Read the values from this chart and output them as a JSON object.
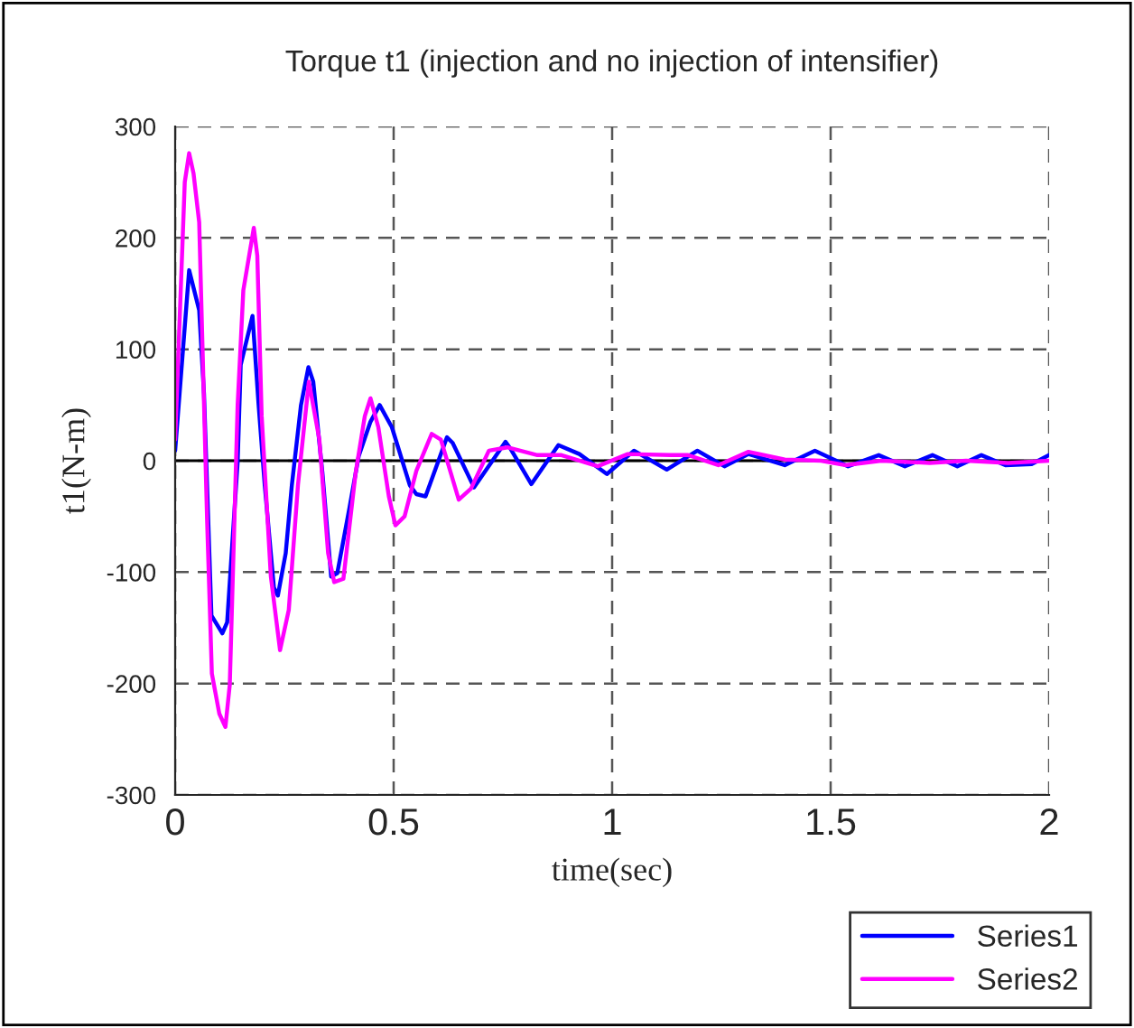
{
  "chart_data": {
    "type": "line",
    "title": "Torque t1 (injection and no injection of intensifier)",
    "xlabel": "time(sec)",
    "ylabel": "t1(N-m)",
    "xlim": [
      0,
      2
    ],
    "xticks": [
      0,
      0.5,
      1,
      1.5,
      2
    ],
    "ylim": [
      -300,
      300
    ],
    "yticks": [
      -300,
      -200,
      -100,
      0,
      100,
      200,
      300
    ],
    "grid": true,
    "legend": "bottom right",
    "marker": "none",
    "line_style": "solid",
    "series": [
      {
        "name": "Series1",
        "color": "#0000ff",
        "x": [
          0,
          0.032,
          0.055,
          0.066,
          0.083,
          0.108,
          0.119,
          0.143,
          0.15,
          0.177,
          0.191,
          0.205,
          0.226,
          0.235,
          0.253,
          0.267,
          0.288,
          0.305,
          0.316,
          0.337,
          0.357,
          0.371,
          0.399,
          0.42,
          0.447,
          0.468,
          0.496,
          0.537,
          0.552,
          0.573,
          0.622,
          0.635,
          0.684,
          0.756,
          0.767,
          0.815,
          0.877,
          0.925,
          0.988,
          1.05,
          1.125,
          1.195,
          1.257,
          1.312,
          1.395,
          1.464,
          1.54,
          1.61,
          1.67,
          1.733,
          1.79,
          1.845,
          1.9,
          1.96,
          2.0
        ],
        "values": [
          9,
          171,
          135,
          60,
          -139,
          -155,
          -145,
          -1,
          86,
          130,
          50,
          -22,
          -114,
          -121,
          -83,
          -22,
          50,
          84,
          71,
          -11,
          -104,
          -101,
          -42,
          4,
          35,
          50,
          30,
          -22,
          -30,
          -32,
          21,
          16,
          -24,
          17,
          11,
          -21,
          14,
          6,
          -12,
          9,
          -8,
          9,
          -5,
          6,
          -4,
          9,
          -5,
          5,
          -5,
          5,
          -5,
          5,
          -4,
          -3,
          5
        ]
      },
      {
        "name": "Series2",
        "color": "#ff00ff",
        "x": [
          0,
          0.022,
          0.032,
          0.042,
          0.055,
          0.073,
          0.084,
          0.101,
          0.115,
          0.125,
          0.143,
          0.156,
          0.18,
          0.188,
          0.198,
          0.219,
          0.24,
          0.26,
          0.281,
          0.306,
          0.33,
          0.35,
          0.364,
          0.385,
          0.413,
          0.434,
          0.447,
          0.465,
          0.489,
          0.504,
          0.525,
          0.552,
          0.587,
          0.608,
          0.649,
          0.677,
          0.718,
          0.76,
          0.829,
          0.884,
          0.967,
          1.036,
          1.133,
          1.174,
          1.243,
          1.312,
          1.395,
          1.478,
          1.533,
          1.616,
          1.727,
          1.81,
          1.906,
          2.0
        ],
        "values": [
          19,
          250,
          276,
          258,
          214,
          -52,
          -191,
          -227,
          -239,
          -201,
          50,
          153,
          209,
          184,
          40,
          -104,
          -170,
          -134,
          -22,
          71,
          19,
          -83,
          -109,
          -106,
          -11,
          40,
          56,
          30,
          -32,
          -58,
          -50,
          -9,
          24,
          19,
          -35,
          -25,
          9,
          12,
          5,
          5,
          -5,
          6,
          5,
          5,
          -4,
          8,
          1,
          0,
          -4,
          0,
          -2,
          0,
          -2,
          0
        ]
      }
    ]
  }
}
